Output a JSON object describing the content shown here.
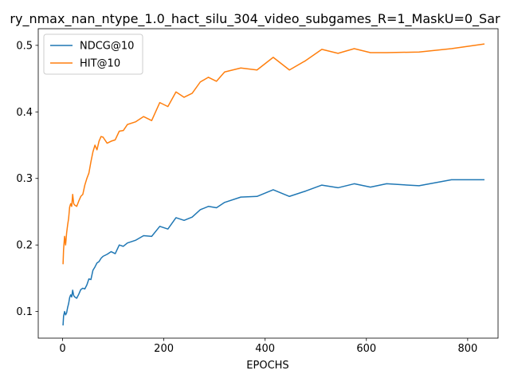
{
  "chart_data": {
    "type": "line",
    "title": "ry_nmax_nan_ntype_1.0_hact_silu_304_video_subgames_R=1_MaskU=0_Sar",
    "xlabel": "EPOCHS",
    "ylabel": "",
    "xlim": [
      -48,
      860
    ],
    "ylim": [
      0.06,
      0.525
    ],
    "xticks": [
      0,
      200,
      400,
      600,
      800
    ],
    "yticks": [
      0.1,
      0.2,
      0.3,
      0.4,
      0.5
    ],
    "xtick_labels": [
      "0",
      "200",
      "400",
      "600",
      "800"
    ],
    "ytick_labels": [
      "0.1",
      "0.2",
      "0.3",
      "0.4",
      "0.5"
    ],
    "grid": false,
    "legend_position": "top-left",
    "series": [
      {
        "name": "NDCG@10",
        "color": "#1f77b4",
        "x": [
          1,
          2,
          4,
          6,
          8,
          10,
          12,
          14,
          16,
          18,
          20,
          22,
          24,
          28,
          32,
          36,
          40,
          44,
          48,
          52,
          56,
          60,
          64,
          68,
          72,
          76,
          80,
          88,
          96,
          104,
          112,
          120,
          128,
          144,
          160,
          176,
          192,
          208,
          224,
          240,
          256,
          272,
          288,
          304,
          320,
          352,
          384,
          416,
          448,
          480,
          512,
          544,
          576,
          608,
          640,
          704,
          768,
          832
        ],
        "y": [
          0.08,
          0.093,
          0.1,
          0.095,
          0.098,
          0.106,
          0.112,
          0.121,
          0.125,
          0.122,
          0.132,
          0.124,
          0.122,
          0.12,
          0.126,
          0.133,
          0.135,
          0.134,
          0.14,
          0.149,
          0.148,
          0.162,
          0.167,
          0.173,
          0.175,
          0.18,
          0.183,
          0.186,
          0.19,
          0.187,
          0.2,
          0.198,
          0.203,
          0.207,
          0.214,
          0.213,
          0.228,
          0.224,
          0.241,
          0.237,
          0.242,
          0.253,
          0.258,
          0.256,
          0.264,
          0.272,
          0.273,
          0.283,
          0.273,
          0.281,
          0.29,
          0.286,
          0.292,
          0.287,
          0.292,
          0.289,
          0.298,
          0.298
        ]
      },
      {
        "name": "HIT@10",
        "color": "#ff7f0e",
        "x": [
          1,
          2,
          4,
          6,
          8,
          10,
          12,
          14,
          16,
          18,
          20,
          22,
          24,
          28,
          32,
          36,
          40,
          44,
          48,
          52,
          56,
          60,
          64,
          68,
          72,
          76,
          80,
          88,
          96,
          104,
          112,
          120,
          128,
          144,
          160,
          176,
          192,
          208,
          224,
          240,
          256,
          272,
          288,
          304,
          320,
          352,
          384,
          416,
          448,
          480,
          512,
          544,
          576,
          608,
          640,
          704,
          768,
          832
        ],
        "y": [
          0.172,
          0.193,
          0.213,
          0.2,
          0.218,
          0.23,
          0.24,
          0.257,
          0.262,
          0.258,
          0.276,
          0.262,
          0.26,
          0.258,
          0.266,
          0.273,
          0.276,
          0.29,
          0.3,
          0.308,
          0.325,
          0.34,
          0.35,
          0.343,
          0.356,
          0.363,
          0.362,
          0.353,
          0.356,
          0.358,
          0.371,
          0.372,
          0.381,
          0.385,
          0.393,
          0.387,
          0.414,
          0.408,
          0.43,
          0.422,
          0.428,
          0.445,
          0.452,
          0.446,
          0.46,
          0.466,
          0.463,
          0.482,
          0.463,
          0.477,
          0.494,
          0.488,
          0.495,
          0.489,
          0.489,
          0.49,
          0.495,
          0.502
        ]
      }
    ]
  }
}
